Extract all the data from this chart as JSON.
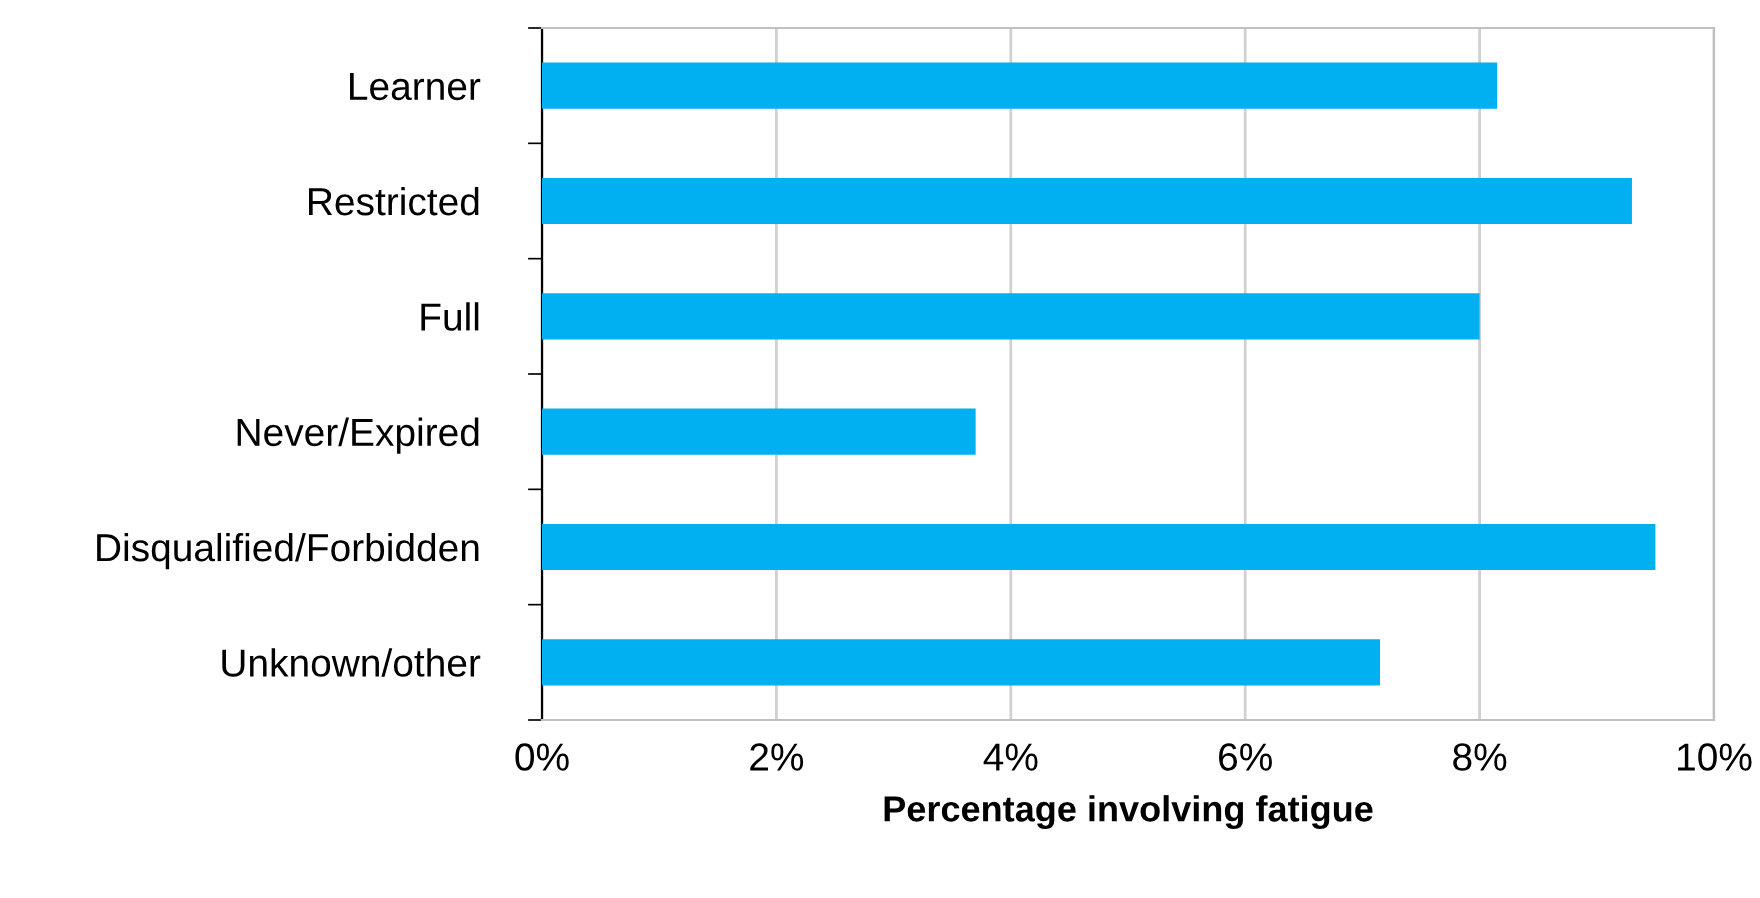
{
  "chart_data": {
    "type": "bar",
    "orientation": "horizontal",
    "xlabel": "Percentage involving fatigue",
    "categories": [
      "Learner",
      "Restricted",
      "Full",
      "Never/Expired",
      "Disqualified/Forbidden",
      "Unknown/other"
    ],
    "values": [
      8.15,
      9.3,
      8.0,
      3.7,
      9.5,
      7.15
    ],
    "color": "#00b0f0",
    "xlim": [
      0,
      10
    ],
    "xticks": [
      {
        "value": 0,
        "label": "0%"
      },
      {
        "value": 2,
        "label": "2%"
      },
      {
        "value": 4,
        "label": "4%"
      },
      {
        "value": 6,
        "label": "6%"
      },
      {
        "value": 8,
        "label": "8%"
      },
      {
        "value": 10,
        "label": "10%"
      }
    ],
    "grid": "x",
    "legend": false
  }
}
